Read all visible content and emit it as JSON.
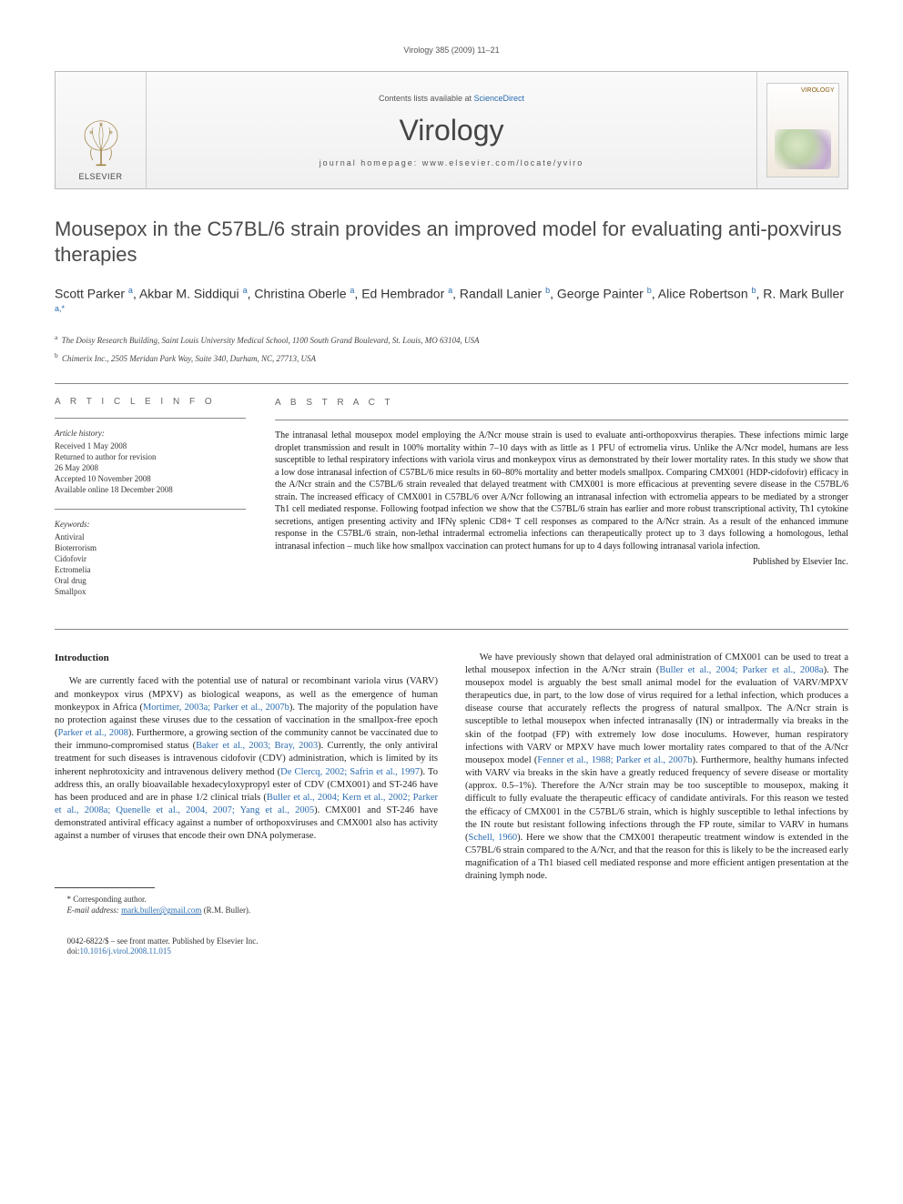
{
  "running_head": "Virology 385 (2009) 11–21",
  "masthead": {
    "publisher_label": "ELSEVIER",
    "contents_prefix": "Contents lists available at ",
    "contents_link": "ScienceDirect",
    "journal_name": "Virology",
    "homepage_prefix": "journal homepage: ",
    "homepage_url": "www.elsevier.com/locate/yviro",
    "cover_label": "VIROLOGY"
  },
  "title": "Mousepox in the C57BL/6 strain provides an improved model for evaluating anti-poxvirus therapies",
  "authors_html": "Scott Parker <sup>a</sup>, Akbar M. Siddiqui <sup>a</sup>, Christina Oberle <sup>a</sup>, Ed Hembrador <sup>a</sup>, Randall Lanier <sup>b</sup>, George Painter <sup>b</sup>, Alice Robertson <sup>b</sup>, R. Mark Buller <sup>a,*</sup>",
  "affiliations": {
    "a": "The Doisy Research Building, Saint Louis University Medical School, 1100 South Grand Boulevard, St. Louis, MO 63104, USA",
    "b": "Chimerix Inc., 2505 Meridan Park Way, Suite 340, Durham, NC, 27713, USA"
  },
  "article_info": {
    "heading": "A R T I C L E   I N F O",
    "history_label": "Article history:",
    "history": [
      "Received 1 May 2008",
      "Returned to author for revision",
      "26 May 2008",
      "Accepted 10 November 2008",
      "Available online 18 December 2008"
    ],
    "keywords_label": "Keywords:",
    "keywords": [
      "Antiviral",
      "Bioterrorism",
      "Cidofovir",
      "Ectromelia",
      "Oral drug",
      "Smallpox"
    ]
  },
  "abstract": {
    "heading": "A B S T R A C T",
    "text": "The intranasal lethal mousepox model employing the A/Ncr mouse strain is used to evaluate anti-orthopoxvirus therapies. These infections mimic large droplet transmission and result in 100% mortality within 7–10 days with as little as 1 PFU of ectromelia virus. Unlike the A/Ncr model, humans are less susceptible to lethal respiratory infections with variola virus and monkeypox virus as demonstrated by their lower mortality rates. In this study we show that a low dose intranasal infection of C57BL/6 mice results in 60–80% mortality and better models smallpox. Comparing CMX001 (HDP-cidofovir) efficacy in the A/Ncr strain and the C57BL/6 strain revealed that delayed treatment with CMX001 is more efficacious at preventing severe disease in the C57BL/6 strain. The increased efficacy of CMX001 in C57BL/6 over A/Ncr following an intranasal infection with ectromelia appears to be mediated by a stronger Th1 cell mediated response. Following footpad infection we show that the C57BL/6 strain has earlier and more robust transcriptional activity, Th1 cytokine secretions, antigen presenting activity and IFNγ splenic CD8+ T cell responses as compared to the A/Ncr strain. As a result of the enhanced immune response in the C57BL/6 strain, non-lethal intradermal ectromelia infections can therapeutically protect up to 3 days following a homologous, lethal intranasal infection – much like how smallpox vaccination can protect humans for up to 4 days following intranasal variola infection.",
    "published_by": "Published by Elsevier Inc."
  },
  "body": {
    "intro_heading": "Introduction",
    "col1": "We are currently faced with the potential use of natural or recombinant variola virus (VARV) and monkeypox virus (MPXV) as biological weapons, as well as the emergence of human monkeypox in Africa (Mortimer, 2003a; Parker et al., 2007b). The majority of the population have no protection against these viruses due to the cessation of vaccination in the smallpox-free epoch (Parker et al., 2008). Furthermore, a growing section of the community cannot be vaccinated due to their immuno-compromised status (Baker et al., 2003; Bray, 2003). Currently, the only antiviral treatment for such diseases is intravenous cidofovir (CDV) administration, which is limited by its inherent nephrotoxicity and intravenous delivery method (De Clercq, 2002; Safrin et al., 1997). To address this, an orally bioavailable hexadecyloxypropyl ester of CDV (CMX001) and ST-246 have has been produced and are in phase 1/2 clinical trials (Buller et al., 2004; Kern et al., 2002; Parker et al., 2008a; Quenelle et al., 2004, 2007; Yang et al., 2005). CMX001 and ST-246 have demonstrated antiviral efficacy against a number of orthopoxviruses and CMX001 also has activity against a number of viruses that encode their own DNA polymerase.",
    "col2": "We have previously shown that delayed oral administration of CMX001 can be used to treat a lethal mousepox infection in the A/Ncr strain (Buller et al., 2004; Parker et al., 2008a). The mousepox model is arguably the best small animal model for the evaluation of VARV/MPXV therapeutics due, in part, to the low dose of virus required for a lethal infection, which produces a disease course that accurately reflects the progress of natural smallpox. The A/Ncr strain is susceptible to lethal mousepox when infected intranasally (IN) or intradermally via breaks in the skin of the footpad (FP) with extremely low dose inoculums. However, human respiratory infections with VARV or MPXV have much lower mortality rates compared to that of the A/Ncr mousepox model (Fenner et al., 1988; Parker et al., 2007b). Furthermore, healthy humans infected with VARV via breaks in the skin have a greatly reduced frequency of severe disease or mortality (approx. 0.5–1%). Therefore the A/Ncr strain may be too susceptible to mousepox, making it difficult to fully evaluate the therapeutic efficacy of candidate antivirals. For this reason we tested the efficacy of CMX001 in the C57BL/6 strain, which is highly susceptible to lethal infections by the IN route but resistant following infections through the FP route, similar to VARV in humans (Schell, 1960). Here we show that the CMX001 therapeutic treatment window is extended in the C57BL/6 strain compared to the A/Ncr, and that the reason for this is likely to be the increased early magnification of a Th1 biased cell mediated response and more efficient antigen presentation at the draining lymph node."
  },
  "footer": {
    "corr_label": "* Corresponding author.",
    "email_label": "E-mail address:",
    "email": "mark.buller@gmail.com",
    "email_name": "(R.M. Buller).",
    "issn_line": "0042-6822/$ – see front matter. Published by Elsevier Inc.",
    "doi_label": "doi:",
    "doi": "10.1016/j.virol.2008.11.015"
  },
  "colors": {
    "link": "#2b6cb0",
    "text": "#231f20",
    "heading_gray": "#4a4a4a"
  }
}
